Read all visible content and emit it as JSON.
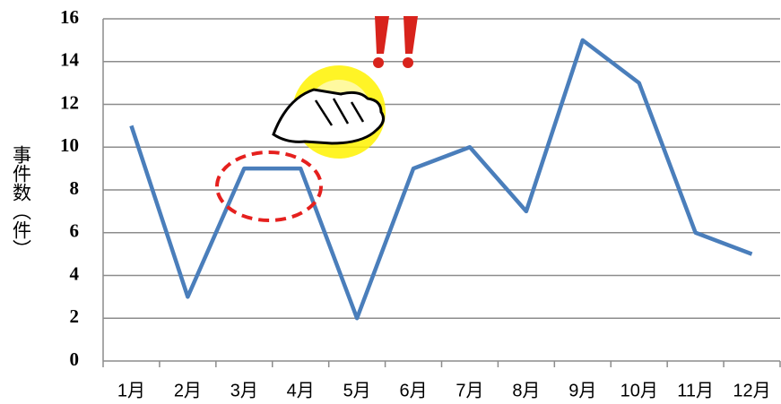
{
  "chart_data": {
    "type": "line",
    "y_label": "事件数（件）",
    "categories": [
      "1月",
      "2月",
      "3月",
      "4月",
      "5月",
      "6月",
      "7月",
      "8月",
      "9月",
      "10月",
      "11月",
      "12月"
    ],
    "values": [
      11,
      3,
      9,
      9,
      2,
      9,
      10,
      7,
      15,
      13,
      6,
      5
    ],
    "color": "#4a7ebb",
    "ylim": [
      0,
      16
    ],
    "yticks": [
      0,
      2,
      4,
      6,
      8,
      10,
      12,
      14,
      16
    ],
    "grid": true
  }
}
